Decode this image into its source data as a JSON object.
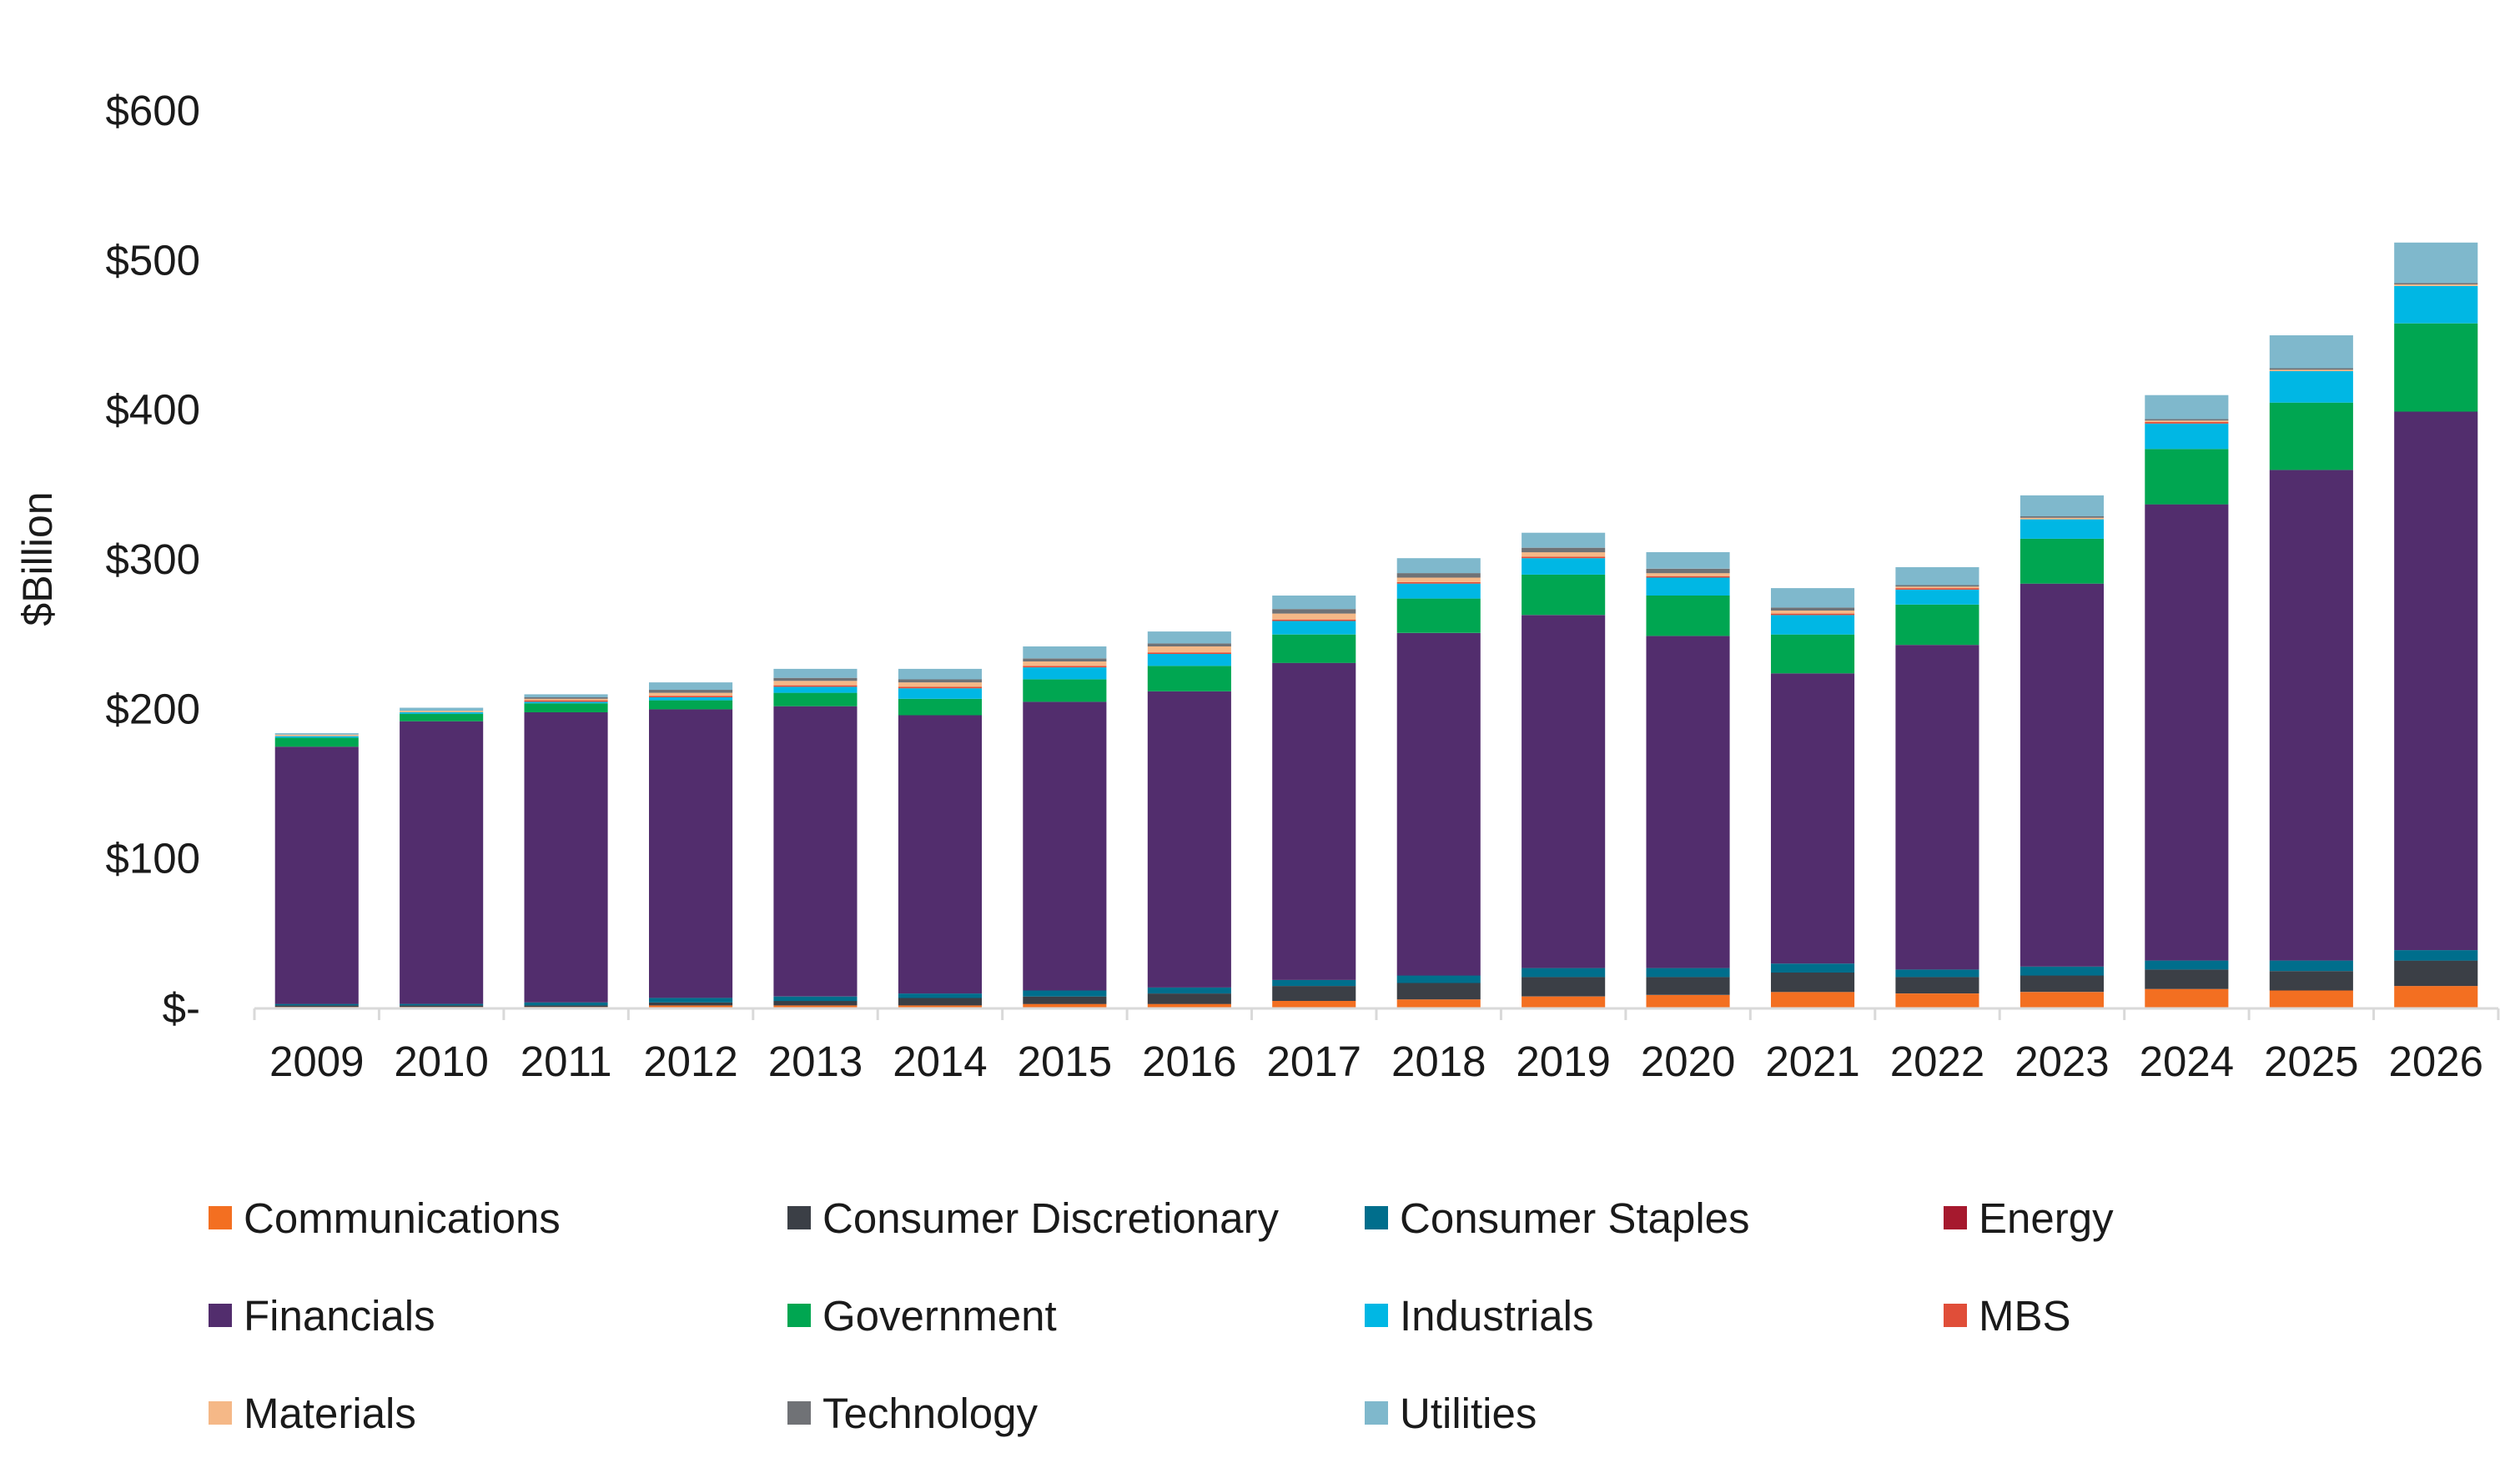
{
  "chart_data": {
    "type": "bar",
    "stacked": true,
    "ylabel": "$Billion",
    "ylim": [
      0,
      600
    ],
    "yticks": [
      0,
      100,
      200,
      300,
      400,
      500,
      600
    ],
    "ytick_labels": [
      "$-",
      "$100",
      "$200",
      "$300",
      "$400",
      "$500",
      "$600"
    ],
    "grid": false,
    "legend_position": "bottom",
    "categories": [
      "2009",
      "2010",
      "2011",
      "2012",
      "2013",
      "2014",
      "2015",
      "2016",
      "2017",
      "2018",
      "2019",
      "2020",
      "2021",
      "2022",
      "2023",
      "2024",
      "2025",
      "2026"
    ],
    "series": [
      {
        "name": "Communications",
        "color": "#F36F21",
        "values": [
          1,
          1,
          1,
          2,
          2,
          2,
          3,
          3,
          5,
          6,
          8,
          9,
          11,
          10,
          11,
          13,
          12,
          15
        ]
      },
      {
        "name": "Consumer Discretionary",
        "color": "#3B3F46",
        "values": [
          1,
          1,
          1,
          2,
          3,
          5,
          5,
          7,
          10,
          11,
          13,
          12,
          13,
          11,
          11,
          13,
          13,
          17
        ]
      },
      {
        "name": "Consumer Staples",
        "color": "#006E8C",
        "values": [
          1,
          1,
          2,
          3,
          3,
          3,
          4,
          4,
          4,
          5,
          6,
          6,
          6,
          5,
          6,
          6,
          7,
          7
        ]
      },
      {
        "name": "Energy",
        "color": "#A6192E",
        "values": [
          0,
          0,
          0,
          0,
          0,
          0,
          0,
          0,
          0,
          0,
          0,
          0,
          0,
          0,
          0,
          0,
          0,
          0
        ]
      },
      {
        "name": "Financials",
        "color": "#522D6D",
        "values": [
          172,
          189,
          194,
          193,
          194,
          186,
          193,
          198,
          212,
          229,
          236,
          222,
          194,
          217,
          256,
          305,
          328,
          360
        ]
      },
      {
        "name": "Government",
        "color": "#00A651",
        "values": [
          6,
          5,
          6,
          6,
          9,
          11,
          15,
          17,
          19,
          23,
          27,
          27,
          26,
          27,
          30,
          37,
          45,
          59
        ]
      },
      {
        "name": "Industrials",
        "color": "#00B7E4",
        "values": [
          1,
          1,
          1,
          2,
          4,
          7,
          8,
          8,
          9,
          10,
          11,
          12,
          13,
          10,
          13,
          17,
          21,
          25
        ]
      },
      {
        "name": "MBS",
        "color": "#E04E39",
        "values": [
          0,
          0,
          1,
          1,
          1,
          1,
          1,
          1,
          1,
          1,
          1,
          1,
          1,
          1,
          0,
          1,
          0,
          0
        ]
      },
      {
        "name": "Materials",
        "color": "#F5B887",
        "values": [
          1,
          1,
          1,
          2,
          3,
          3,
          3,
          4,
          4,
          3,
          3,
          2,
          2,
          1,
          1,
          1,
          1,
          1
        ]
      },
      {
        "name": "Technology",
        "color": "#707276",
        "values": [
          0,
          0,
          1,
          2,
          2,
          2,
          2,
          2,
          3,
          3,
          3,
          3,
          2,
          1,
          1,
          1,
          1,
          1
        ]
      },
      {
        "name": "Utilities",
        "color": "#7FB8CC",
        "values": [
          1,
          2,
          2,
          5,
          6,
          7,
          8,
          8,
          9,
          10,
          10,
          11,
          13,
          12,
          14,
          16,
          22,
          27
        ]
      }
    ]
  }
}
